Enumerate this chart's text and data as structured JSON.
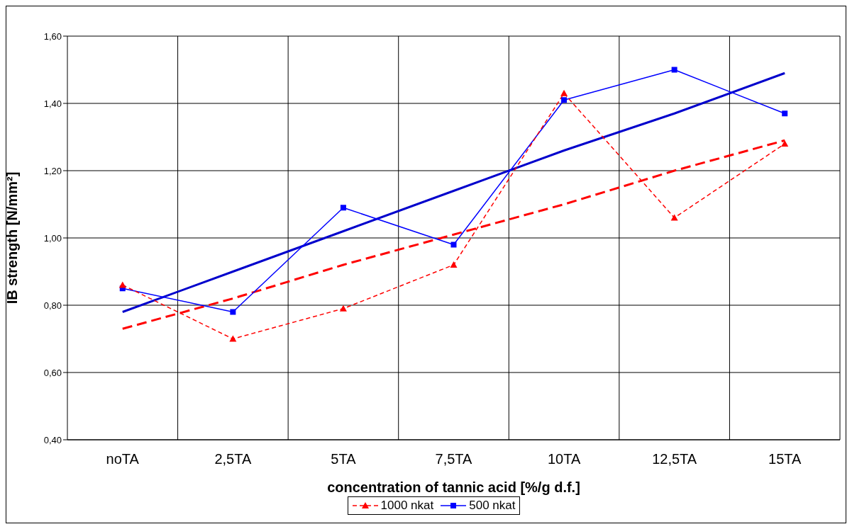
{
  "chart_data": {
    "type": "line",
    "xlabel": "concentration of tannic acid [%/g d.f.]",
    "ylabel": "IB strength [N/mm²]",
    "categories": [
      "noTA",
      "2,5TA",
      "5TA",
      "7,5TA",
      "10TA",
      "12,5TA",
      "15TA"
    ],
    "series": [
      {
        "name": "1000 nkat",
        "color": "#ff0000",
        "marker": "triangle",
        "line_style": "dashed",
        "values": [
          0.86,
          0.7,
          0.79,
          0.92,
          1.43,
          1.06,
          1.28
        ]
      },
      {
        "name": "500 nkat",
        "color": "#0000ff",
        "marker": "square",
        "line_style": "solid",
        "values": [
          0.85,
          0.78,
          1.09,
          0.98,
          1.41,
          1.5,
          1.37
        ]
      },
      {
        "color": "#ff0000",
        "marker": "none",
        "line_style": "dashed",
        "values": [
          0.73,
          0.82,
          0.92,
          1.01,
          1.1,
          1.2,
          1.29
        ]
      },
      {
        "color": "#0000cc",
        "marker": "none",
        "line_style": "solid",
        "values": [
          0.78,
          0.9,
          1.02,
          1.14,
          1.26,
          1.37,
          1.49
        ]
      }
    ],
    "ylim": [
      0.4,
      1.6
    ],
    "yticks": [
      {
        "value": 0.4,
        "label": "0,40"
      },
      {
        "value": 0.6,
        "label": "0,60"
      },
      {
        "value": 0.8,
        "label": "0,80"
      },
      {
        "value": 1.0,
        "label": "1,00"
      },
      {
        "value": 1.2,
        "label": "1,20"
      },
      {
        "value": 1.4,
        "label": "1,40"
      },
      {
        "value": 1.6,
        "label": "1,60"
      }
    ],
    "grid": true,
    "legend": "bottom"
  }
}
